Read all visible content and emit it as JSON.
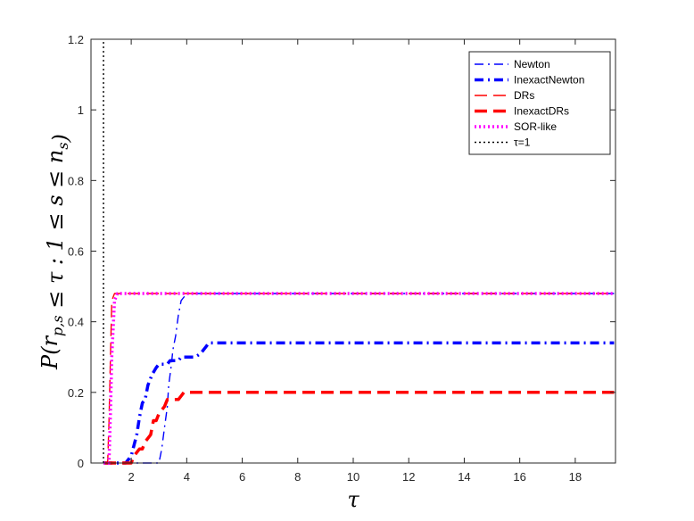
{
  "chart_data": {
    "type": "line",
    "title": "",
    "xlabel": "τ",
    "ylabel": "P(r_{p,s} ≤ τ : 1 ≤ s ≤ n_s)",
    "xlim": [
      0.55,
      19.45
    ],
    "ylim": [
      0,
      1.2
    ],
    "xticks": [
      2,
      4,
      6,
      8,
      10,
      12,
      14,
      16,
      18
    ],
    "yticks": [
      0,
      0.2,
      0.4,
      0.6,
      0.8,
      1,
      1.2
    ],
    "ytick_labels": [
      "0",
      "0.2",
      "0.4",
      "0.6",
      "0.8",
      "1",
      "1.2"
    ],
    "grid": false,
    "legend_position": "top-right",
    "series": [
      {
        "name": "Newton",
        "color": "#0000ff",
        "dash": "dashdot",
        "width": 1.4,
        "x": [
          1,
          3.0,
          3.1,
          3.2,
          3.3,
          3.35,
          3.45,
          3.5,
          3.6,
          3.7,
          3.8,
          3.9,
          4.0,
          19.4
        ],
        "y": [
          0,
          0,
          0.04,
          0.1,
          0.16,
          0.22,
          0.28,
          0.32,
          0.36,
          0.42,
          0.46,
          0.47,
          0.48,
          0.48
        ]
      },
      {
        "name": "InexactNewton",
        "color": "#0000ff",
        "dash": "dashdot",
        "width": 3.5,
        "x": [
          1,
          1.8,
          1.9,
          2.0,
          2.1,
          2.2,
          2.3,
          2.4,
          2.5,
          2.6,
          2.75,
          2.9,
          3.0,
          3.3,
          3.4,
          3.7,
          3.8,
          4.3,
          4.5,
          4.7,
          4.8,
          19.4
        ],
        "y": [
          0,
          0,
          0.01,
          0.02,
          0.05,
          0.08,
          0.13,
          0.17,
          0.18,
          0.22,
          0.25,
          0.27,
          0.28,
          0.28,
          0.29,
          0.29,
          0.3,
          0.3,
          0.31,
          0.33,
          0.34,
          0.34
        ]
      },
      {
        "name": "DRs",
        "color": "#ff0000",
        "dash": "dash",
        "width": 1.4,
        "x": [
          1,
          1.15,
          1.2,
          1.25,
          1.3,
          1.4,
          19.4
        ],
        "y": [
          0,
          0,
          0.12,
          0.3,
          0.46,
          0.48,
          0.48
        ]
      },
      {
        "name": "InexactDRs",
        "color": "#ff0000",
        "dash": "dash",
        "width": 3.5,
        "x": [
          1,
          2.0,
          2.1,
          2.3,
          2.4,
          2.5,
          2.7,
          2.8,
          2.9,
          3.0,
          3.2,
          3.3,
          3.4,
          3.5,
          3.7,
          3.8,
          3.9,
          4.0,
          19.4
        ],
        "y": [
          0,
          0,
          0.02,
          0.04,
          0.04,
          0.06,
          0.08,
          0.12,
          0.12,
          0.14,
          0.16,
          0.18,
          0.18,
          0.18,
          0.18,
          0.19,
          0.2,
          0.2,
          0.2
        ]
      },
      {
        "name": "SOR-like",
        "color": "#ff00ff",
        "dash": "dot",
        "width": 3.5,
        "x": [
          1,
          1.2,
          1.25,
          1.3,
          1.4,
          1.5,
          19.4
        ],
        "y": [
          0,
          0,
          0.14,
          0.3,
          0.46,
          0.48,
          0.48
        ]
      },
      {
        "name": "τ=1",
        "color": "#000000",
        "dash": "dot",
        "width": 1.4,
        "x": [
          1,
          1
        ],
        "y": [
          0,
          1.2
        ]
      }
    ]
  }
}
